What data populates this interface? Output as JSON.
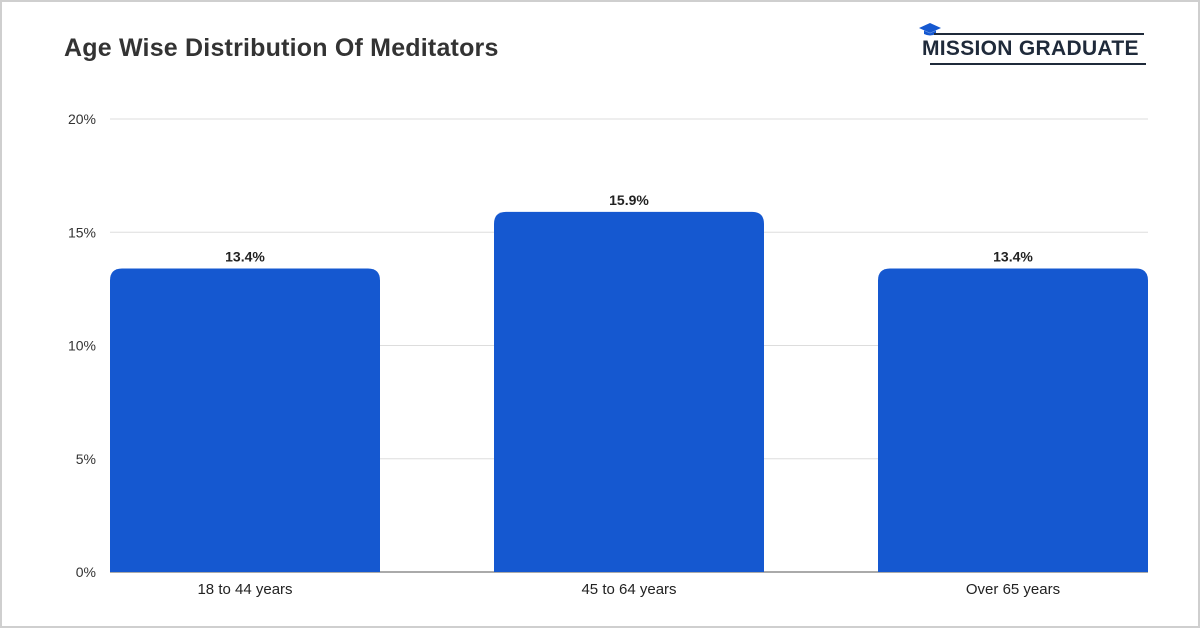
{
  "header": {
    "title": "Age Wise Distribution Of Meditators",
    "logo_text": "MISSION GRADUATE"
  },
  "colors": {
    "bar": "#1558d0",
    "grid": "#dddddd",
    "axis": "#555555",
    "frame": "#cfcfcf"
  },
  "chart_data": {
    "type": "bar",
    "title": "Age Wise Distribution Of Meditators",
    "xlabel": "",
    "ylabel": "",
    "categories": [
      "18 to 44 years",
      "45 to 64 years",
      "Over 65 years"
    ],
    "values": [
      13.4,
      15.9,
      13.4
    ],
    "value_labels": [
      "13.4%",
      "15.9%",
      "13.4%"
    ],
    "ylim": [
      0,
      20
    ],
    "yticks": [
      0,
      5,
      10,
      15,
      20
    ],
    "ytick_labels": [
      "0%",
      "5%",
      "10%",
      "15%",
      "20%"
    ],
    "grid": true,
    "legend": "none"
  }
}
